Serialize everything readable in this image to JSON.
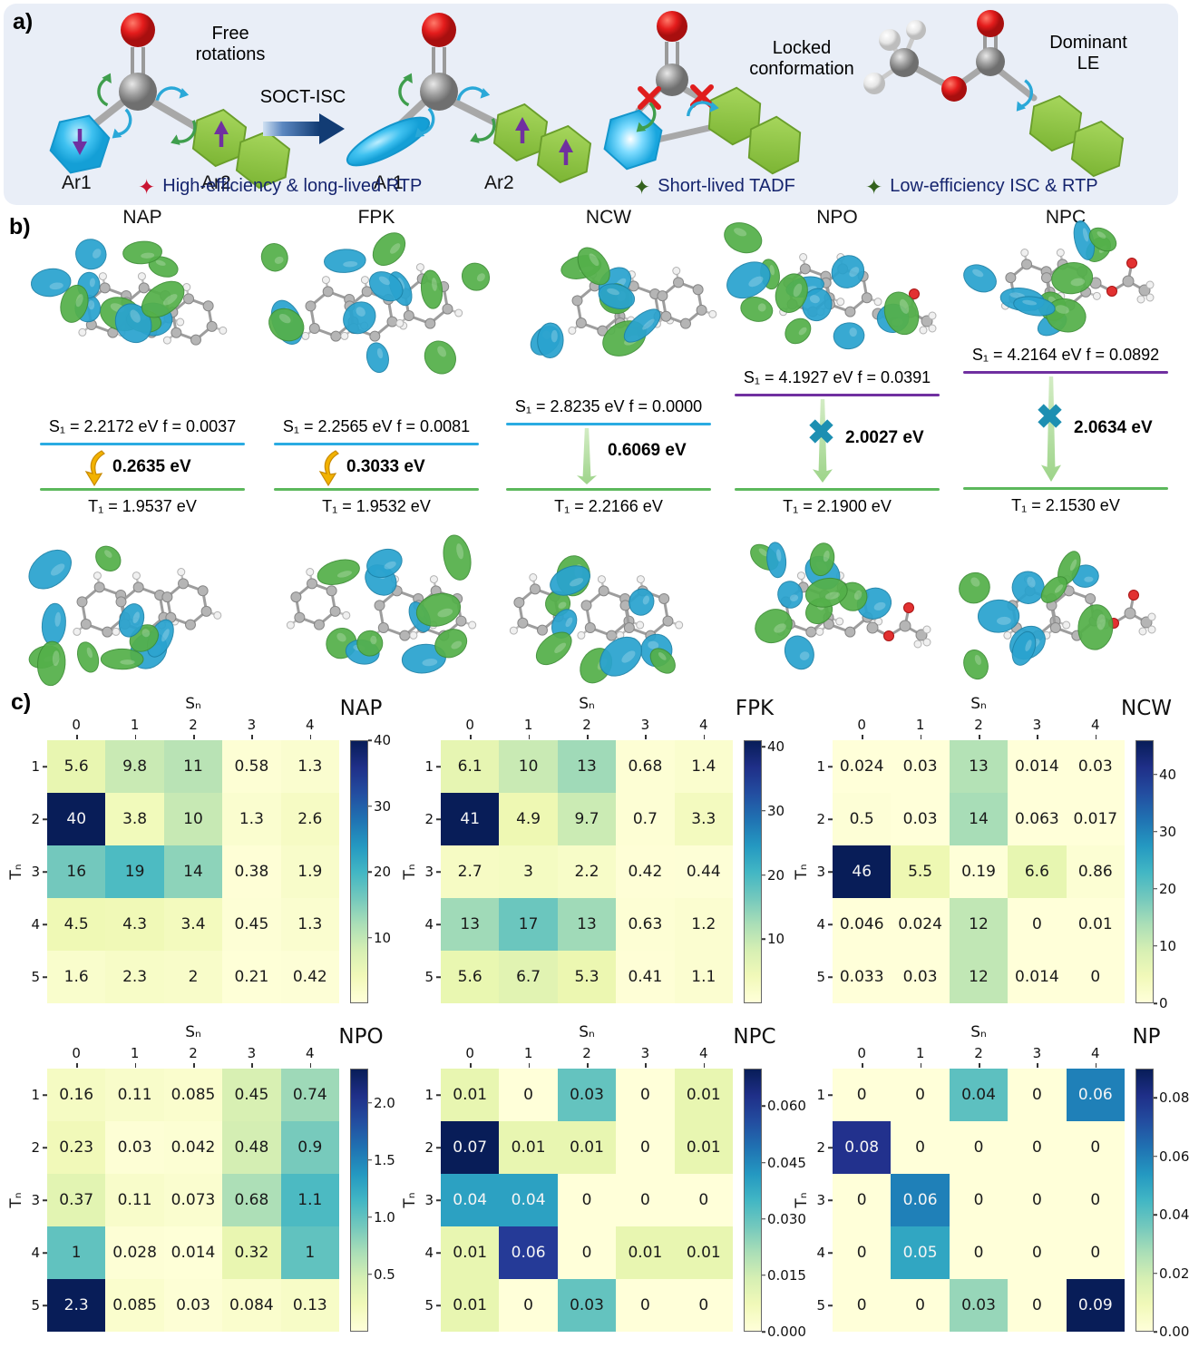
{
  "panel_labels": {
    "a": "a)",
    "b": "b)",
    "c": "c)"
  },
  "colors": {
    "panel_a_bg": "#e9eef7",
    "accent_navy": "#15246e",
    "s1_blue": "#2aabe2",
    "s1_purple": "#7030a0",
    "t1_green": "#5cb85c",
    "x_teal": "#1d8fb2",
    "gold_arrow": "#f2b200",
    "red_star": "#c81432",
    "green_star": "#33611d",
    "orbital_green": "#54b04a",
    "orbital_blue": "#2aa3cf"
  },
  "panel_a": {
    "free_rotations_line1": "Free",
    "free_rotations_line2": "rotations",
    "soct_isc": "SOCT-ISC",
    "locked_line1": "Locked",
    "locked_line2": "conformation",
    "dominant_line1": "Dominant",
    "dominant_line2": "LE",
    "mol1_ar1": "Ar1",
    "mol1_ar2": "Ar2",
    "mol2_ar1": "Ar1",
    "mol2_ar2": "Ar2",
    "legend": [
      {
        "star": "✦",
        "text": "High-efficiency & long-lived RTP"
      },
      {
        "star": "✦",
        "text": "Short-lived TADF"
      },
      {
        "star": "✦",
        "text": "Low-efficiency ISC & RTP"
      }
    ]
  },
  "panel_b": {
    "columns": [
      {
        "name": "NAP",
        "s1_text": "S₁ = 2.2172 eV  f = 0.0037",
        "gap_text": "0.2635 eV",
        "t1_text": "T₁ = 1.9537 eV"
      },
      {
        "name": "FPK",
        "s1_text": "S₁ = 2.2565 eV f = 0.0081",
        "gap_text": "0.3033 eV",
        "t1_text": "T₁ = 1.9532 eV"
      },
      {
        "name": "NCW",
        "s1_text": "S₁ = 2.8235 eV f = 0.0000",
        "gap_text": "0.6069 eV",
        "t1_text": "T₁ = 2.2166 eV"
      },
      {
        "name": "NPO",
        "s1_text": "S₁ = 4.1927 eV   f = 0.0391",
        "gap_text": "2.0027 eV",
        "t1_text": "T₁ = 2.1900 eV"
      },
      {
        "name": "NPC",
        "s1_text": "S₁ = 4.2164 eV  f = 0.0892",
        "gap_text": "2.0634 eV",
        "t1_text": "T₁ =  2.1530 eV"
      }
    ]
  },
  "chart_data": [
    {
      "type": "heatmap",
      "title": "NAP",
      "xlabel": "Sₙ",
      "ylabel": "Tₙ",
      "x_ticks": [
        "0",
        "1",
        "2",
        "3",
        "4"
      ],
      "y_ticks": [
        "1",
        "2",
        "3",
        "4",
        "5"
      ],
      "values": [
        [
          5.6,
          9.8,
          11,
          0.58,
          1.3
        ],
        [
          40,
          3.8,
          10,
          1.3,
          2.6
        ],
        [
          16,
          19,
          14,
          0.38,
          1.9
        ],
        [
          4.5,
          4.3,
          3.4,
          0.45,
          1.3
        ],
        [
          1.6,
          2.3,
          2,
          0.21,
          0.42
        ]
      ],
      "labels": [
        [
          "5.6",
          "9.8",
          "11",
          "0.58",
          "1.3"
        ],
        [
          "40",
          "3.8",
          "10",
          "1.3",
          "2.6"
        ],
        [
          "16",
          "19",
          "14",
          "0.38",
          "1.9"
        ],
        [
          "4.5",
          "4.3",
          "3.4",
          "0.45",
          "1.3"
        ],
        [
          "1.6",
          "2.3",
          "2",
          "0.21",
          "0.42"
        ]
      ],
      "vmax": 40,
      "colormap": "YlGnBu",
      "legend_position": "right",
      "colorbar_ticks": [
        {
          "v": 10,
          "l": "10"
        },
        {
          "v": 20,
          "l": "20"
        },
        {
          "v": 30,
          "l": "30"
        },
        {
          "v": 40,
          "l": "40"
        }
      ]
    },
    {
      "type": "heatmap",
      "title": "FPK",
      "xlabel": "Sₙ",
      "ylabel": "Tₙ",
      "x_ticks": [
        "0",
        "1",
        "2",
        "3",
        "4"
      ],
      "y_ticks": [
        "1",
        "2",
        "3",
        "4",
        "5"
      ],
      "values": [
        [
          6.1,
          10,
          13,
          0.68,
          1.4
        ],
        [
          41,
          4.9,
          9.7,
          0.7,
          3.3
        ],
        [
          2.7,
          3,
          2.2,
          0.42,
          0.44
        ],
        [
          13,
          17,
          13,
          0.63,
          1.2
        ],
        [
          5.6,
          6.7,
          5.3,
          0.41,
          1.1
        ]
      ],
      "labels": [
        [
          "6.1",
          "10",
          "13",
          "0.68",
          "1.4"
        ],
        [
          "41",
          "4.9",
          "9.7",
          "0.7",
          "3.3"
        ],
        [
          "2.7",
          "3",
          "2.2",
          "0.42",
          "0.44"
        ],
        [
          "13",
          "17",
          "13",
          "0.63",
          "1.2"
        ],
        [
          "5.6",
          "6.7",
          "5.3",
          "0.41",
          "1.1"
        ]
      ],
      "vmax": 41,
      "colormap": "YlGnBu",
      "legend_position": "right",
      "colorbar_ticks": [
        {
          "v": 10,
          "l": "10"
        },
        {
          "v": 20,
          "l": "20"
        },
        {
          "v": 30,
          "l": "30"
        },
        {
          "v": 40,
          "l": "40"
        }
      ]
    },
    {
      "type": "heatmap",
      "title": "NCW",
      "xlabel": "Sₙ",
      "ylabel": "Tₙ",
      "x_ticks": [
        "0",
        "1",
        "2",
        "3",
        "4"
      ],
      "y_ticks": [
        "1",
        "2",
        "3",
        "4",
        "5"
      ],
      "values": [
        [
          0.024,
          0.03,
          13,
          0.014,
          0.03
        ],
        [
          0.5,
          0.03,
          14,
          0.063,
          0.017
        ],
        [
          46,
          5.5,
          0.19,
          6.6,
          0.86
        ],
        [
          0.046,
          0.024,
          12,
          0,
          0.01
        ],
        [
          0.033,
          0.03,
          12,
          0.014,
          0
        ]
      ],
      "labels": [
        [
          "0.024",
          "0.03",
          "13",
          "0.014",
          "0.03"
        ],
        [
          "0.5",
          "0.03",
          "14",
          "0.063",
          "0.017"
        ],
        [
          "46",
          "5.5",
          "0.19",
          "6.6",
          "0.86"
        ],
        [
          "0.046",
          "0.024",
          "12",
          "0",
          "0.01"
        ],
        [
          "0.033",
          "0.03",
          "12",
          "0.014",
          "0"
        ]
      ],
      "vmax": 46,
      "colormap": "YlGnBu",
      "legend_position": "right",
      "colorbar_ticks": [
        {
          "v": 0,
          "l": "0"
        },
        {
          "v": 10,
          "l": "10"
        },
        {
          "v": 20,
          "l": "20"
        },
        {
          "v": 30,
          "l": "30"
        },
        {
          "v": 40,
          "l": "40"
        }
      ]
    },
    {
      "type": "heatmap",
      "title": "NPO",
      "xlabel": "Sₙ",
      "ylabel": "Tₙ",
      "x_ticks": [
        "0",
        "1",
        "2",
        "3",
        "4"
      ],
      "y_ticks": [
        "1",
        "2",
        "3",
        "4",
        "5"
      ],
      "values": [
        [
          0.16,
          0.11,
          0.085,
          0.45,
          0.74
        ],
        [
          0.23,
          0.03,
          0.042,
          0.48,
          0.9
        ],
        [
          0.37,
          0.11,
          0.073,
          0.68,
          1.1
        ],
        [
          1,
          0.028,
          0.014,
          0.32,
          1
        ],
        [
          2.3,
          0.085,
          0.03,
          0.084,
          0.13
        ]
      ],
      "labels": [
        [
          "0.16",
          "0.11",
          "0.085",
          "0.45",
          "0.74"
        ],
        [
          "0.23",
          "0.03",
          "0.042",
          "0.48",
          "0.9"
        ],
        [
          "0.37",
          "0.11",
          "0.073",
          "0.68",
          "1.1"
        ],
        [
          "1",
          "0.028",
          "0.014",
          "0.32",
          "1"
        ],
        [
          "2.3",
          "0.085",
          "0.03",
          "0.084",
          "0.13"
        ]
      ],
      "vmax": 2.3,
      "colormap": "YlGnBu",
      "legend_position": "right",
      "colorbar_ticks": [
        {
          "v": 0.5,
          "l": "0.5"
        },
        {
          "v": 1.0,
          "l": "1.0"
        },
        {
          "v": 1.5,
          "l": "1.5"
        },
        {
          "v": 2.0,
          "l": "2.0"
        }
      ]
    },
    {
      "type": "heatmap",
      "title": "NPC",
      "xlabel": "Sₙ",
      "ylabel": "Tₙ",
      "x_ticks": [
        "0",
        "1",
        "2",
        "3",
        "4"
      ],
      "y_ticks": [
        "1",
        "2",
        "3",
        "4",
        "5"
      ],
      "values": [
        [
          0.01,
          0,
          0.03,
          0,
          0.01
        ],
        [
          0.07,
          0.01,
          0.01,
          0,
          0.01
        ],
        [
          0.04,
          0.04,
          0,
          0,
          0
        ],
        [
          0.01,
          0.06,
          0,
          0.01,
          0.01
        ],
        [
          0.01,
          0,
          0.03,
          0,
          0
        ]
      ],
      "labels": [
        [
          "0.01",
          "0",
          "0.03",
          "0",
          "0.01"
        ],
        [
          "0.07",
          "0.01",
          "0.01",
          "0",
          "0.01"
        ],
        [
          "0.04",
          "0.04",
          "0",
          "0",
          "0"
        ],
        [
          "0.01",
          "0.06",
          "0",
          "0.01",
          "0.01"
        ],
        [
          "0.01",
          "0",
          "0.03",
          "0",
          "0"
        ]
      ],
      "vmax": 0.07,
      "colormap": "YlGnBu",
      "legend_position": "right",
      "colorbar_ticks": [
        {
          "v": 0,
          "l": "0.000"
        },
        {
          "v": 0.015,
          "l": "0.015"
        },
        {
          "v": 0.03,
          "l": "0.030"
        },
        {
          "v": 0.045,
          "l": "0.045"
        },
        {
          "v": 0.06,
          "l": "0.060"
        }
      ]
    },
    {
      "type": "heatmap",
      "title": "NP",
      "xlabel": "Sₙ",
      "ylabel": "Tₙ",
      "x_ticks": [
        "0",
        "1",
        "2",
        "3",
        "4"
      ],
      "y_ticks": [
        "1",
        "2",
        "3",
        "4",
        "5"
      ],
      "values": [
        [
          0,
          0,
          0.04,
          0,
          0.06
        ],
        [
          0.08,
          0,
          0,
          0,
          0
        ],
        [
          0,
          0.06,
          0,
          0,
          0
        ],
        [
          0,
          0.05,
          0,
          0,
          0
        ],
        [
          0,
          0,
          0.03,
          0,
          0.09
        ]
      ],
      "labels": [
        [
          "0",
          "0",
          "0.04",
          "0",
          "0.06"
        ],
        [
          "0.08",
          "0",
          "0",
          "0",
          "0"
        ],
        [
          "0",
          "0.06",
          "0",
          "0",
          "0"
        ],
        [
          "0",
          "0.05",
          "0",
          "0",
          "0"
        ],
        [
          "0",
          "0",
          "0.03",
          "0",
          "0.09"
        ]
      ],
      "vmax": 0.09,
      "colormap": "YlGnBu",
      "legend_position": "right",
      "colorbar_ticks": [
        {
          "v": 0,
          "l": "0.00"
        },
        {
          "v": 0.02,
          "l": "0.02"
        },
        {
          "v": 0.04,
          "l": "0.04"
        },
        {
          "v": 0.06,
          "l": "0.06"
        },
        {
          "v": 0.08,
          "l": "0.08"
        }
      ]
    }
  ]
}
